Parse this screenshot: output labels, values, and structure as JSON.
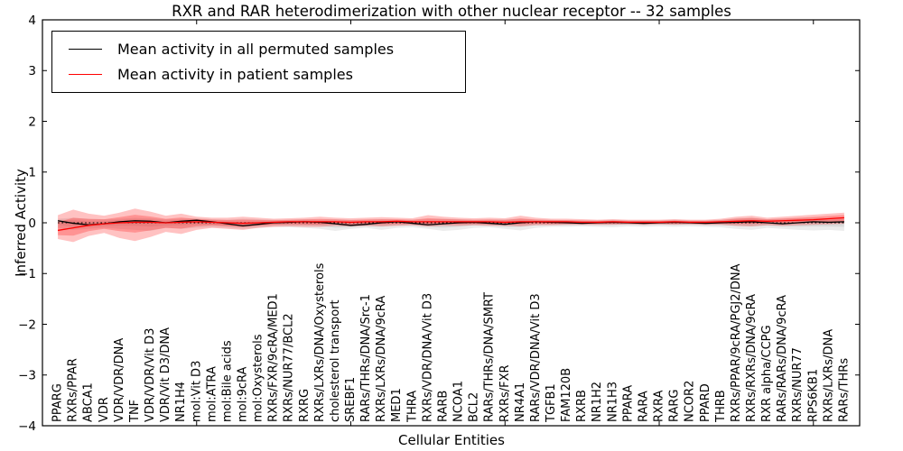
{
  "title": "RXR and RAR heterodimerization with other nuclear receptor -- 32 samples",
  "legend": [
    {
      "label": "Mean activity in all permuted samples",
      "color": "#000000"
    },
    {
      "label": "Mean activity in patient samples",
      "color": "#ff0000"
    }
  ],
  "chart_data": {
    "type": "line",
    "title": "RXR and RAR heterodimerization with other nuclear receptor -- 32 samples",
    "xlabel": "Cellular Entities",
    "ylabel": "Inferred Activity",
    "ylim": [
      -4,
      4
    ],
    "grid": false,
    "legend_position": "upper left",
    "x_major_ticks_every": 10,
    "yticks": [
      {
        "value": 4,
        "label": "4"
      },
      {
        "value": 3,
        "label": "3"
      },
      {
        "value": 2,
        "label": "2"
      },
      {
        "value": 1,
        "label": "1"
      },
      {
        "value": 0,
        "label": "0"
      },
      {
        "value": -1,
        "label": "−1"
      },
      {
        "value": -2,
        "label": "−2"
      },
      {
        "value": -3,
        "label": "−3"
      },
      {
        "value": -4,
        "label": "−4"
      }
    ],
    "categories": [
      "PPARG",
      "RXRs/PPAR",
      "ABCA1",
      "VDR",
      "VDR/VDR/DNA",
      "TNF",
      "VDR/VDR/Vit D3",
      "VDR/Vit D3/DNA",
      "NR1H4",
      "mol:Vit D3",
      "mol:ATRA",
      "mol:Bile acids",
      "mol:9cRA",
      "mol:Oxysterols",
      "RXRs/FXR/9cRA/MED1",
      "RXRs/NUR77/BCL2",
      "RXRG",
      "RXRs/LXRs/DNA/Oxysterols",
      "cholesterol transport",
      "SREBF1",
      "RARs/THRs/DNA/Src-1",
      "RXRs/LXRs/DNA/9cRA",
      "MED1",
      "THRA",
      "RXRs/VDR/DNA/Vit D3",
      "RARB",
      "NCOA1",
      "BCL2",
      "RARs/THRs/DNA/SMRT",
      "RXRs/FXR",
      "NR4A1",
      "RARs/VDR/DNA/Vit D3",
      "TGFB1",
      "FAM120B",
      "RXRB",
      "NR1H2",
      "NR1H3",
      "PPARA",
      "RARA",
      "RXRA",
      "RARG",
      "NCOR2",
      "PPARD",
      "THRB",
      "RXRs/PPAR/9cRA/PGJ2/DNA",
      "RXRs/RXRs/DNA/9cRA",
      "RXR alpha/CCPG",
      "RARs/RARs/DNA/9cRA",
      "RXRs/NUR77",
      "RPS6KB1",
      "RXRs/LXRs/DNA",
      "RARs/THRs"
    ],
    "series": [
      {
        "name": "Mean activity in all permuted samples",
        "color": "#000000",
        "values": [
          0.04,
          -0.01,
          -0.04,
          -0.02,
          0.02,
          0.04,
          0.03,
          0.0,
          0.03,
          0.05,
          0.02,
          -0.02,
          -0.06,
          -0.03,
          0.0,
          0.01,
          0.02,
          0.01,
          -0.02,
          -0.05,
          -0.03,
          0.0,
          0.02,
          -0.01,
          -0.04,
          -0.02,
          0.0,
          0.01,
          -0.01,
          -0.03,
          0.0,
          0.02,
          0.01,
          0.0,
          -0.01,
          0.0,
          0.01,
          0.0,
          -0.01,
          0.0,
          0.01,
          0.0,
          -0.01,
          0.0,
          0.01,
          0.02,
          0.0,
          -0.02,
          0.0,
          0.02,
          0.01,
          0.02
        ]
      },
      {
        "name": "Mean activity in patient samples",
        "color": "#ff0000",
        "values": [
          -0.15,
          -0.1,
          -0.05,
          -0.02,
          0.0,
          0.01,
          0.01,
          0.0,
          0.01,
          0.02,
          0.01,
          0.0,
          -0.01,
          0.0,
          0.01,
          0.02,
          0.02,
          0.02,
          0.02,
          0.01,
          0.02,
          0.02,
          0.03,
          0.02,
          0.02,
          0.02,
          0.02,
          0.02,
          0.02,
          0.01,
          0.02,
          0.02,
          0.02,
          0.02,
          0.01,
          0.01,
          0.02,
          0.01,
          0.01,
          0.01,
          0.02,
          0.01,
          0.01,
          0.02,
          0.03,
          0.04,
          0.03,
          0.04,
          0.05,
          0.06,
          0.08,
          0.1
        ]
      }
    ],
    "bands": [
      {
        "name": "patient-std",
        "color": "rgba(255,0,0,0.24)",
        "hi": [
          0.15,
          0.26,
          0.18,
          0.14,
          0.2,
          0.28,
          0.22,
          0.14,
          0.18,
          0.12,
          0.1,
          0.1,
          0.12,
          0.1,
          0.08,
          0.09,
          0.1,
          0.12,
          0.1,
          0.09,
          0.1,
          0.11,
          0.1,
          0.09,
          0.15,
          0.12,
          0.1,
          0.09,
          0.1,
          0.09,
          0.14,
          0.1,
          0.08,
          0.08,
          0.07,
          0.06,
          0.07,
          0.06,
          0.06,
          0.06,
          0.07,
          0.06,
          0.06,
          0.08,
          0.12,
          0.14,
          0.1,
          0.12,
          0.14,
          0.16,
          0.18,
          0.2
        ],
        "lo": [
          -0.32,
          -0.38,
          -0.26,
          -0.2,
          -0.3,
          -0.36,
          -0.28,
          -0.18,
          -0.22,
          -0.14,
          -0.1,
          -0.12,
          -0.14,
          -0.1,
          -0.08,
          -0.07,
          -0.08,
          -0.08,
          -0.06,
          -0.07,
          -0.06,
          -0.07,
          -0.06,
          -0.05,
          -0.07,
          -0.06,
          -0.06,
          -0.05,
          -0.06,
          -0.06,
          -0.07,
          -0.05,
          -0.05,
          -0.04,
          -0.04,
          -0.04,
          -0.04,
          -0.03,
          -0.04,
          -0.03,
          -0.04,
          -0.03,
          -0.04,
          -0.04,
          -0.06,
          -0.07,
          -0.05,
          -0.06,
          -0.05,
          -0.04,
          -0.03,
          -0.02
        ]
      },
      {
        "name": "permuted-std",
        "color": "rgba(0,0,0,0.075)",
        "hi": [
          0.08,
          0.1,
          0.08,
          0.07,
          0.08,
          0.1,
          0.09,
          0.07,
          0.08,
          0.09,
          0.07,
          0.06,
          0.08,
          0.07,
          0.06,
          0.06,
          0.07,
          0.06,
          0.07,
          0.06,
          0.06,
          0.07,
          0.06,
          0.06,
          0.07,
          0.08,
          0.07,
          0.06,
          0.06,
          0.07,
          0.08,
          0.06,
          0.06,
          0.05,
          0.05,
          0.05,
          0.06,
          0.05,
          0.05,
          0.05,
          0.06,
          0.05,
          0.05,
          0.06,
          0.09,
          0.1,
          0.07,
          0.08,
          0.09,
          0.1,
          0.09,
          0.1
        ],
        "lo": [
          -0.1,
          -0.14,
          -0.12,
          -0.1,
          -0.12,
          -0.14,
          -0.16,
          -0.1,
          -0.12,
          -0.1,
          -0.09,
          -0.1,
          -0.12,
          -0.1,
          -0.08,
          -0.09,
          -0.1,
          -0.12,
          -0.16,
          -0.12,
          -0.1,
          -0.14,
          -0.1,
          -0.09,
          -0.12,
          -0.16,
          -0.14,
          -0.1,
          -0.09,
          -0.12,
          -0.15,
          -0.1,
          -0.08,
          -0.08,
          -0.07,
          -0.08,
          -0.09,
          -0.07,
          -0.08,
          -0.07,
          -0.08,
          -0.07,
          -0.08,
          -0.09,
          -0.12,
          -0.14,
          -0.1,
          -0.12,
          -0.14,
          -0.15,
          -0.14,
          -0.16
        ]
      }
    ],
    "zero_reference_line": true
  }
}
